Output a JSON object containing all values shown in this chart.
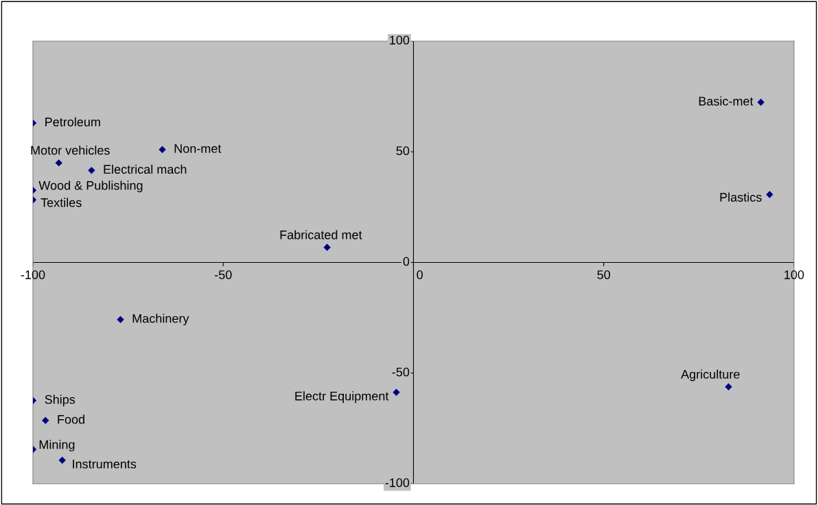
{
  "chart_data": {
    "type": "scatter",
    "x": [
      -100,
      -93.2,
      -66,
      -84.6,
      -100,
      -100,
      -22.7,
      91.3,
      93.6,
      -77,
      -100,
      -96.7,
      -100,
      -92.3,
      -4.5,
      82.8
    ],
    "series": [
      {
        "color": "#000080",
        "values": [
          63,
          45,
          51,
          41.6,
          32.6,
          28.3,
          6.8,
          72.4,
          30.7,
          -25.8,
          -62.4,
          -71.4,
          -84.5,
          -89.4,
          -58.7,
          -56.2
        ]
      }
    ],
    "xlim": [
      -100,
      100
    ],
    "ylim": [
      -100,
      100
    ],
    "xticks": [
      -100,
      -50,
      0,
      50,
      100
    ],
    "yticks": [
      -100,
      -50,
      0,
      50,
      100
    ],
    "marker": "diamond",
    "grid": false,
    "legend": false,
    "annotations": [
      {
        "text": "Petroleum",
        "x": -100,
        "y": 63
      },
      {
        "text": "Motor vehicles",
        "x": -93.2,
        "y": 45
      },
      {
        "text": "Non-met",
        "x": -66,
        "y": 51
      },
      {
        "text": "Electrical mach",
        "x": -84.6,
        "y": 41.6
      },
      {
        "text": "Wood & Publishing",
        "x": -100,
        "y": 32.6
      },
      {
        "text": "Textiles",
        "x": -100,
        "y": 28.3
      },
      {
        "text": "Fabricated met",
        "x": -22.7,
        "y": 6.8
      },
      {
        "text": "Basic-met",
        "x": 91.3,
        "y": 72.4
      },
      {
        "text": "Plastics",
        "x": 93.6,
        "y": 30.7
      },
      {
        "text": "Machinery",
        "x": -77,
        "y": -25.8
      },
      {
        "text": "Ships",
        "x": -100,
        "y": -62.4
      },
      {
        "text": "Food",
        "x": -96.7,
        "y": -71.4
      },
      {
        "text": "Mining",
        "x": -100,
        "y": -84.5
      },
      {
        "text": "Instruments",
        "x": -92.3,
        "y": -89.4
      },
      {
        "text": "Electr Equipment",
        "x": -4.5,
        "y": -58.7
      },
      {
        "text": "Agriculture",
        "x": 82.8,
        "y": -56.2
      }
    ]
  }
}
